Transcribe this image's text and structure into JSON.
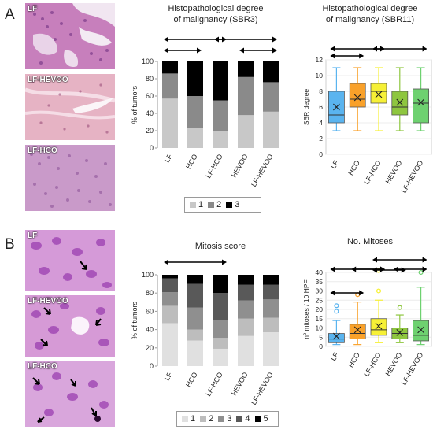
{
  "panels": {
    "A": {
      "letter": "A",
      "images": [
        {
          "label": "LF",
          "stain": "he-ductal"
        },
        {
          "label": "LF-HEVOO",
          "stain": "he-fibrous"
        },
        {
          "label": "LF-HCO",
          "stain": "he-solid"
        }
      ],
      "bar_title_1": "Histopathological degree",
      "bar_title_2": "of malignancy (SBR3)",
      "box_title_1": "Histopathological degree",
      "box_title_2": "of malignancy (SBR11)",
      "legend": [
        "1",
        "2",
        "3"
      ]
    },
    "B": {
      "letter": "B",
      "images": [
        {
          "label": "LF",
          "stain": "he-mitosis"
        },
        {
          "label": "LF-HEVOO",
          "stain": "he-mitosis"
        },
        {
          "label": "LF-HCO",
          "stain": "he-mitosis"
        }
      ],
      "bar_title": "Mitosis score",
      "box_title": "No. Mitoses",
      "legend": [
        "1",
        "2",
        "3",
        "4",
        "5"
      ]
    }
  },
  "colors": {
    "grades3": [
      "#c8c8c8",
      "#8a8a8a",
      "#000000"
    ],
    "grades5": [
      "#e0e0e0",
      "#bdbdbd",
      "#8f8f8f",
      "#595959",
      "#000000"
    ],
    "groups": [
      "#5ab4ef",
      "#f9a12a",
      "#f6f036",
      "#8ec63f",
      "#6ed170"
    ]
  },
  "chart_data": [
    {
      "type": "bar",
      "stacked": true,
      "title": "Histopathological degree of malignancy (SBR3)",
      "categories": [
        "LF",
        "HCO",
        "LF-HCO",
        "HEVOO",
        "LF-HEVOO"
      ],
      "ylabel": "% of tumors",
      "ylim": [
        0,
        100
      ],
      "yticks": [
        0,
        20,
        40,
        60,
        80,
        100
      ],
      "series": [
        {
          "name": "1",
          "values": [
            57,
            23,
            20,
            38,
            42
          ]
        },
        {
          "name": "2",
          "values": [
            29,
            37,
            35,
            44,
            34
          ]
        },
        {
          "name": "3",
          "values": [
            14,
            40,
            45,
            18,
            24
          ]
        }
      ],
      "comparisons": [
        [
          0,
          2
        ],
        [
          2,
          4
        ],
        [
          0,
          1
        ],
        [
          3,
          4
        ]
      ]
    },
    {
      "type": "box",
      "title": "Histopathological degree of malignancy (SBR11)",
      "categories": [
        "LF",
        "HCO",
        "LF-HCO",
        "HEVOO",
        "LF-HEVOO"
      ],
      "ylabel": "SBR degree",
      "ylim": [
        0,
        12
      ],
      "yticks": [
        0,
        2,
        4,
        6,
        8,
        10,
        12
      ],
      "boxes": [
        {
          "min": 3,
          "q1": 4,
          "median": 5,
          "q3": 8,
          "max": 11,
          "mean": 6,
          "outliers": []
        },
        {
          "min": 3,
          "q1": 6,
          "median": 7,
          "q3": 9,
          "max": 11,
          "mean": 7.2,
          "outliers": []
        },
        {
          "min": 3,
          "q1": 6.5,
          "median": 8,
          "q3": 9,
          "max": 11,
          "mean": 7.6,
          "outliers": []
        },
        {
          "min": 3,
          "q1": 5,
          "median": 6,
          "q3": 8,
          "max": 11,
          "mean": 6.6,
          "outliers": []
        },
        {
          "min": 3,
          "q1": 4,
          "median": 6.5,
          "q3": 8.3,
          "max": 11,
          "mean": 6.6,
          "outliers": []
        }
      ],
      "comparisons": [
        [
          0,
          1
        ],
        [
          0,
          2
        ],
        [
          2,
          4
        ]
      ]
    },
    {
      "type": "bar",
      "stacked": true,
      "title": "Mitosis score",
      "categories": [
        "LF",
        "HCO",
        "LF-HCO",
        "HEVOO",
        "LF-HEVOO"
      ],
      "ylabel": "% of tumors",
      "ylim": [
        0,
        100
      ],
      "yticks": [
        0,
        20,
        40,
        60,
        80,
        100
      ],
      "series": [
        {
          "name": "1",
          "values": [
            47,
            28,
            19,
            33,
            37
          ]
        },
        {
          "name": "2",
          "values": [
            19,
            12,
            12,
            19,
            16
          ]
        },
        {
          "name": "3",
          "values": [
            15,
            24,
            19,
            20,
            20
          ]
        },
        {
          "name": "4",
          "values": [
            15,
            26,
            30,
            17,
            16
          ]
        },
        {
          "name": "5",
          "values": [
            4,
            10,
            20,
            11,
            11
          ]
        }
      ],
      "comparisons": [
        [
          0,
          2
        ]
      ]
    },
    {
      "type": "box",
      "title": "No. Mitoses",
      "categories": [
        "LF",
        "HCO",
        "LF-HCO",
        "HEVOO",
        "LF-HEVOO"
      ],
      "ylabel": "nº mitoses / 10 HPF",
      "ylim": [
        0,
        40
      ],
      "yticks": [
        0,
        5,
        10,
        15,
        20,
        25,
        30,
        35,
        40
      ],
      "boxes": [
        {
          "min": 1,
          "q1": 2,
          "median": 4,
          "q3": 7,
          "max": 14,
          "mean": 5.5,
          "outliers": [
            19,
            22
          ]
        },
        {
          "min": 1,
          "q1": 4,
          "median": 7,
          "q3": 12,
          "max": 24,
          "mean": 9,
          "outliers": [
            28
          ]
        },
        {
          "min": 2,
          "q1": 6,
          "median": 9,
          "q3": 15,
          "max": 25,
          "mean": 11,
          "outliers": [
            30,
            41
          ]
        },
        {
          "min": 2,
          "q1": 4,
          "median": 7,
          "q3": 10,
          "max": 17,
          "mean": 7.5,
          "outliers": [
            21
          ]
        },
        {
          "min": 1,
          "q1": 3,
          "median": 6,
          "q3": 14,
          "max": 32,
          "mean": 9,
          "outliers": [
            40
          ]
        }
      ],
      "comparisons": [
        [
          0,
          1
        ],
        [
          0,
          2
        ],
        [
          1,
          2
        ],
        [
          2,
          3
        ],
        [
          2,
          4
        ],
        [
          3,
          4
        ]
      ]
    }
  ]
}
